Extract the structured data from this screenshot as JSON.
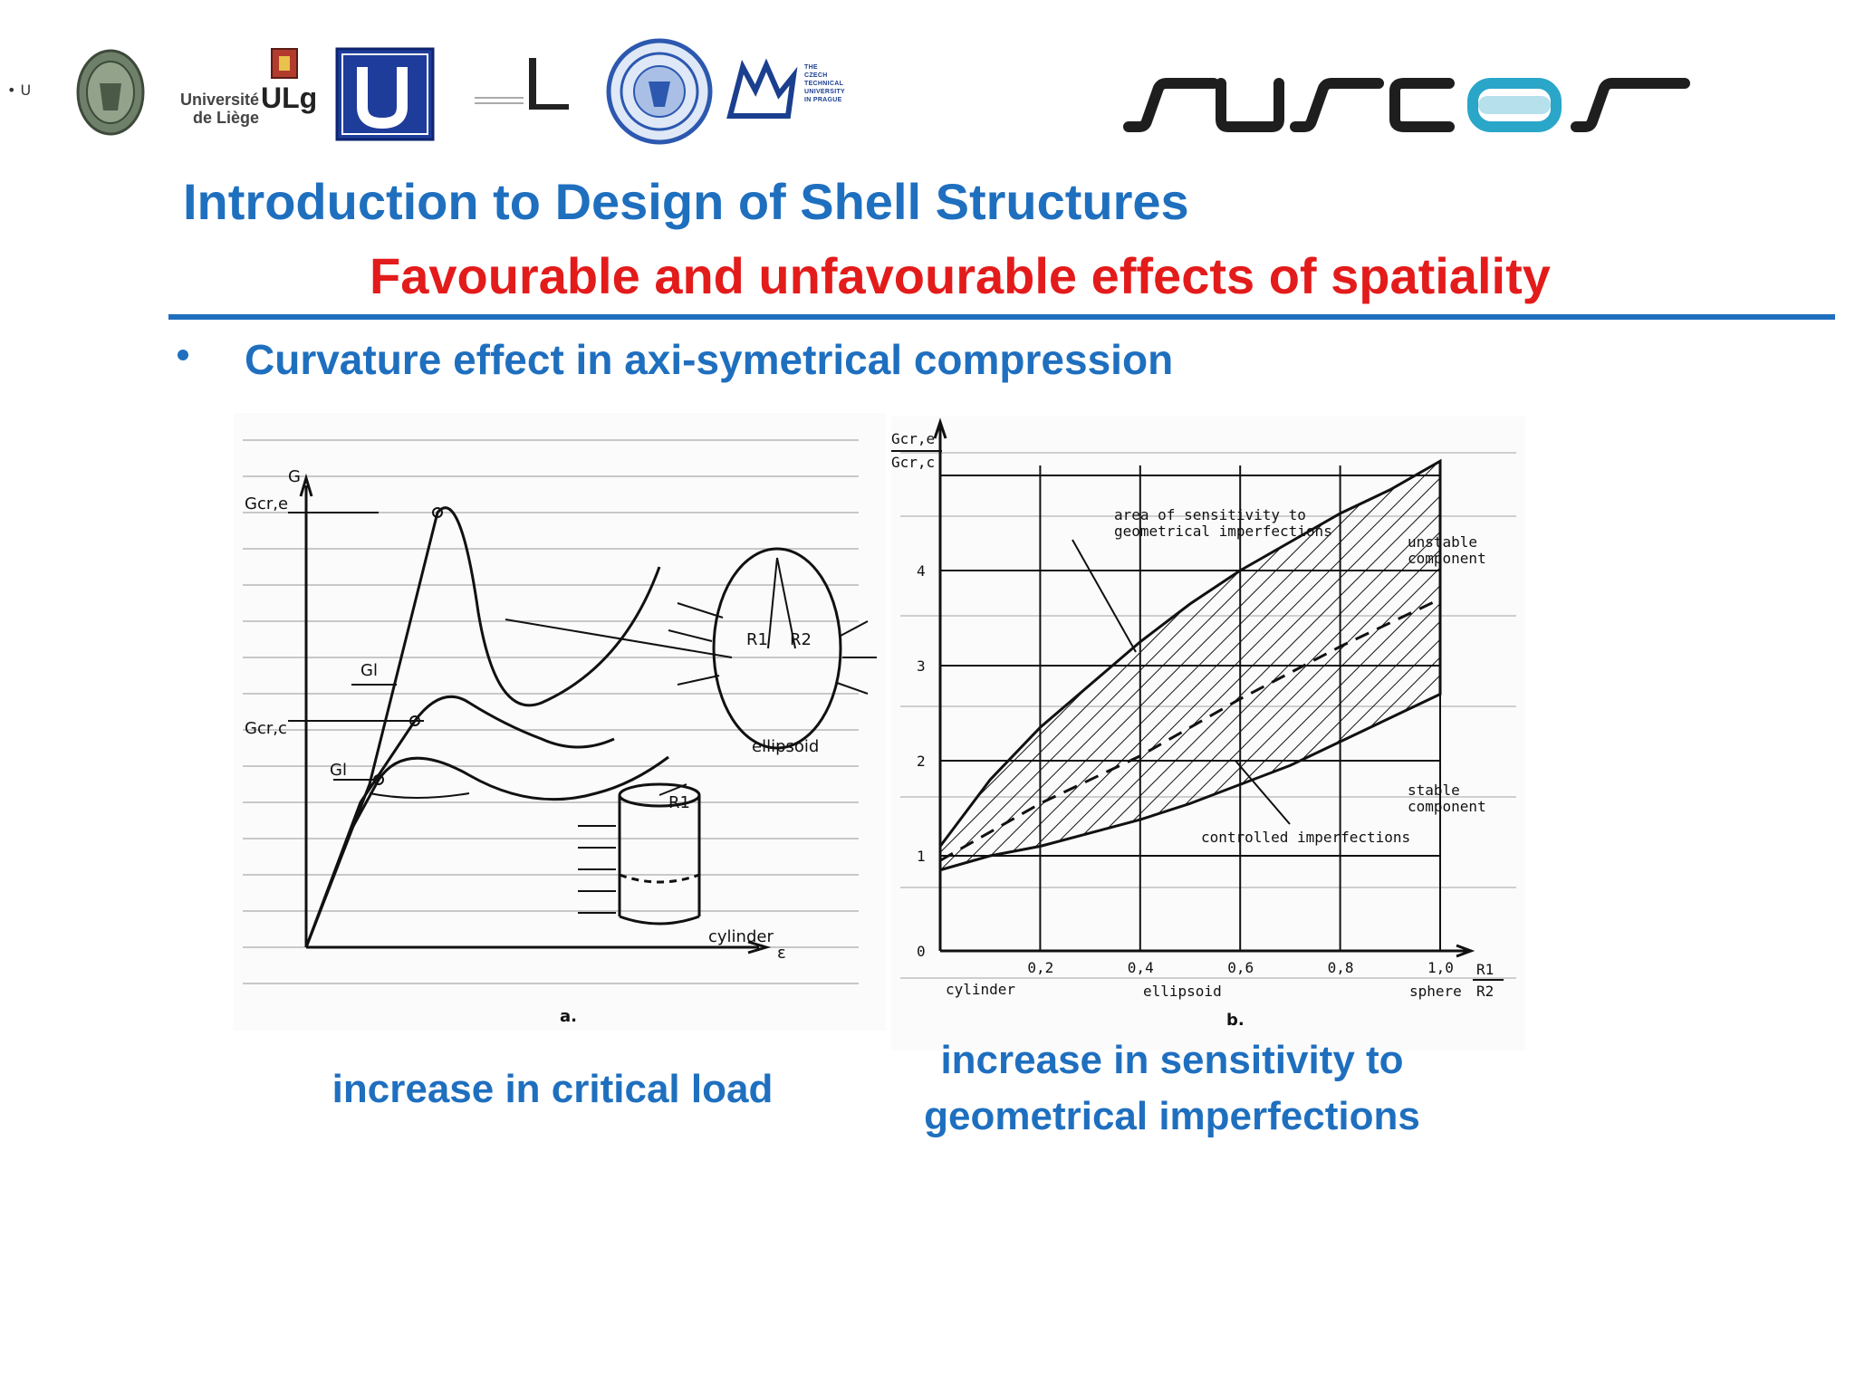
{
  "logos": {
    "ulg_text_line1": "Université",
    "ulg_text_line2": "de Liège",
    "ulg_mark": "ULg",
    "ctu_lines": [
      "THE",
      "CZECH",
      "TECHNICAL",
      "UNIVERSITY",
      "IN PRAGUE"
    ],
    "susco_wordmark": "SUSCOS",
    "accent_color": "#2aa6c9"
  },
  "header": {
    "title": "Introduction to Design of Shell Structures",
    "subtitle": "Favourable and unfavourable effects of spatiality",
    "rule_color": "#1f6fbf"
  },
  "bullet": {
    "text": "Curvature effect in axi-symetrical compression"
  },
  "figure_a": {
    "y_axis_label": "G",
    "label_gcre": "Gcr,e",
    "label_gcrc": "Gcr,c",
    "label_gl_top": "Gl",
    "label_gl_bottom": "Gl",
    "x_axis_label": "ε",
    "ellipsoid_label": "ellipsoid",
    "cylinder_label": "cylinder",
    "r1": "R1",
    "r2": "R2",
    "r1_cyl": "R1",
    "panel": "a."
  },
  "figure_b": {
    "y_axis_num": "Gcr,e",
    "y_axis_den": "Gcr,c",
    "y_ticks": [
      "0",
      "1",
      "2",
      "3",
      "4"
    ],
    "x_ticks": [
      "0,2",
      "0,4",
      "0,6",
      "0,8",
      "1,0"
    ],
    "x_axis_num": "R1",
    "x_axis_den": "R2",
    "area_label_line1": "area of sensitivity to",
    "area_label_line2": "geometrical imperfections",
    "unstable_line1": "unstable",
    "unstable_line2": "component",
    "stable_line1": "stable",
    "stable_line2": "component",
    "controlled": "controlled imperfections",
    "cylinder": "cylinder",
    "ellipsoid": "ellipsoid",
    "sphere": "sphere",
    "panel": "b."
  },
  "captions": {
    "left": "increase in critical load",
    "right_line1": "increase in sensitivity to",
    "right_line2": "geometrical imperfections"
  }
}
